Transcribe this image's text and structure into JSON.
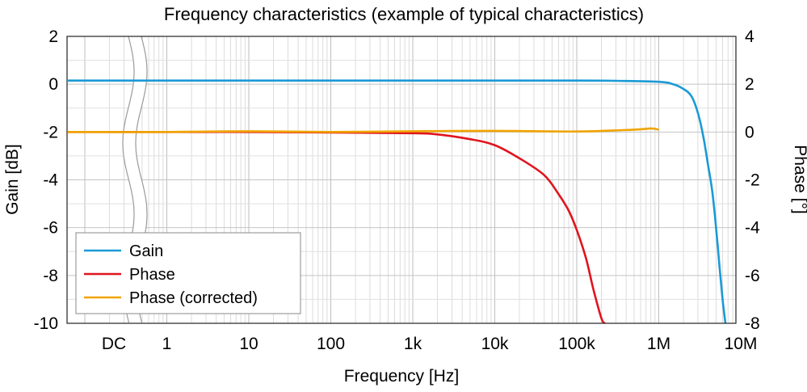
{
  "chart_data": {
    "type": "line",
    "title": "Frequency characteristics (example of typical characteristics)",
    "xlabel": "Frequency [Hz]",
    "ylabel_left": "Gain [dB]",
    "ylabel_right": "Phase [°]",
    "x_scale": "log",
    "x_ticks": [
      {
        "label": "DC",
        "value": null
      },
      {
        "label": "1",
        "value": 1
      },
      {
        "label": "10",
        "value": 10
      },
      {
        "label": "100",
        "value": 100
      },
      {
        "label": "1k",
        "value": 1000
      },
      {
        "label": "10k",
        "value": 10000
      },
      {
        "label": "100k",
        "value": 100000
      },
      {
        "label": "1M",
        "value": 1000000
      },
      {
        "label": "10M",
        "value": 10000000
      }
    ],
    "ylim_left": [
      -10,
      2
    ],
    "yticks_left": [
      "2",
      "0",
      "-2",
      "-4",
      "-6",
      "-8",
      "-10"
    ],
    "ylim_right": [
      -8,
      4
    ],
    "yticks_right": [
      "4",
      "2",
      "0",
      "-2",
      "-4",
      "-6",
      "-8"
    ],
    "grid": true,
    "legend_position": "bottom-left",
    "axis_break_after": "DC",
    "series": [
      {
        "name": "Gain",
        "axis": "left",
        "color": "#1a9ad6",
        "x": [
          "DC",
          1,
          10,
          100,
          1000,
          10000,
          100000,
          300000,
          1000000,
          1500000,
          2000000,
          2500000,
          3000000,
          3500000,
          4000000,
          4500000,
          5000000,
          5500000,
          6000000,
          6500000
        ],
        "values": [
          0.15,
          0.15,
          0.15,
          0.15,
          0.15,
          0.15,
          0.15,
          0.14,
          0.1,
          0.0,
          -0.2,
          -0.5,
          -1.2,
          -2.2,
          -3.4,
          -4.5,
          -6.0,
          -7.6,
          -9.0,
          -10.0
        ]
      },
      {
        "name": "Phase",
        "axis": "right",
        "color": "#e0141e",
        "x": [
          "DC",
          1,
          10,
          100,
          1000,
          2000,
          5000,
          10000,
          20000,
          40000,
          60000,
          80000,
          100000,
          130000,
          160000,
          200000,
          220000
        ],
        "values": [
          0.0,
          0.0,
          0.0,
          -0.02,
          -0.05,
          -0.1,
          -0.3,
          -0.55,
          -1.1,
          -1.8,
          -2.6,
          -3.3,
          -4.1,
          -5.3,
          -6.6,
          -7.8,
          -8.0
        ]
      },
      {
        "name": "Phase (corrected)",
        "axis": "right",
        "color": "#f0a400",
        "x": [
          "DC",
          1,
          10,
          100,
          1000,
          10000,
          100000,
          500000,
          800000,
          1000000
        ],
        "values": [
          0.0,
          0.0,
          0.03,
          0.0,
          0.03,
          0.05,
          0.02,
          0.1,
          0.15,
          0.1
        ]
      }
    ]
  }
}
